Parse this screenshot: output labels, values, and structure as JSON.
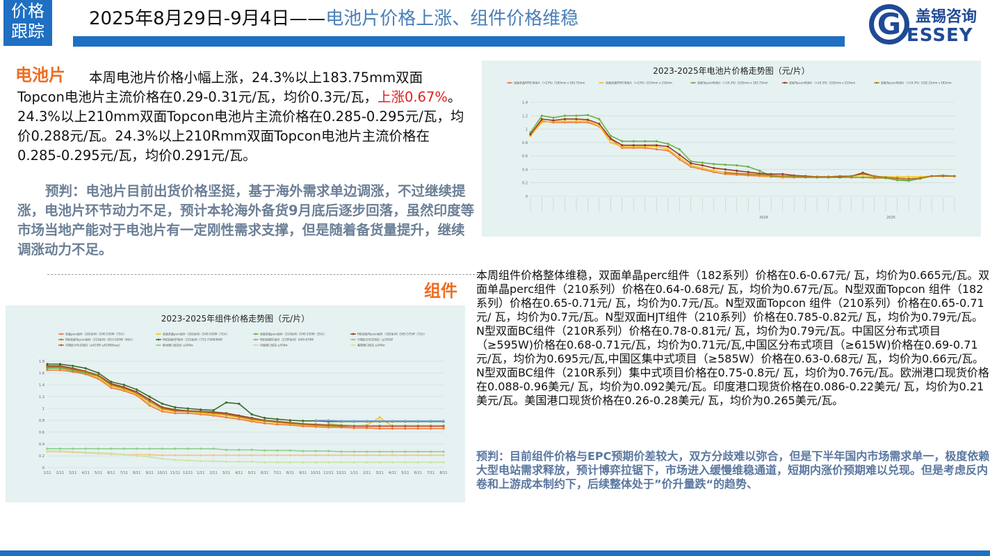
{
  "header": {
    "tag_line1": "价格",
    "tag_line2": "跟踪",
    "date_range": "2025年8月29日-9月4日——",
    "headline": "电池片价格上涨、组件价格维稳",
    "logo_cn": "盖锡咨询",
    "logo_g": "G",
    "logo_en": "ESSEY"
  },
  "cells": {
    "title": "电池片",
    "para_a": "本周电池片价格小幅上涨，24.3%以上183.75mm双面Topcon电池片主流价格在0.29-0.31元/瓦，均价0.3元/瓦，",
    "para_red": "上涨0.67%",
    "para_b": "。24.3%以上210mm双面Topcon电池片主流价格在0.285-0.295元/瓦，均价0.288元/瓦。24.3%以上210Rmm双面Topcon电池片主流价格在0.285-0.295元/瓦，均价0.291元/瓦。",
    "prediction": "预判：电池片目前出货价格坚挺，基于海外需求单边调涨，不过继续提涨，电池片环节动力不足，预计本轮海外备货9月底后逐步回落，虽然印度等市场当地产能对于电池片有一定刚性需求支撑，但是随着备货量提升，继续调涨动力不足。"
  },
  "modules": {
    "title": "组件",
    "paragraph": "本周组件价格整体维稳，双面单晶perc组件（182系列）价格在0.6-0.67元/ 瓦，均价为0.665元/瓦。双面单晶perc组件（210系列）价格在0.64-0.68元/ 瓦，均价为0.67元/瓦。N型双面Topcon 组件（182系列）价格在0.65-0.71元/ 瓦，均价为0.7元/瓦。N型双面Topcon 组件（210系列）价格在0.65-0.71元/ 瓦，均价为0.7元/瓦。N型双面HJT组件（210系列）价格在0.785-0.82元/ 瓦，均价为0.79元/瓦。N型双面BC组件（210R系列）价格在0.78-0.81元/ 瓦，均价为0.79元/瓦。中国区分布式项目（≥595W)价格在0.68-0.71元/瓦，均价为0.71元/瓦,中国区分布式项目（≥615W)价格在0.69-0.71元/瓦，均价为0.695元/瓦,中国区集中式项目（≥585W）价格在0.63-0.68元/ 瓦，均价为0.66元/瓦。N型双面BC组件（210R系列）集中式项目价格在0.75-0.8元/ 瓦，均价为0.76元/瓦。欧洲港口现货价格在0.088-0.96美元/ 瓦，均价为0.092美元/瓦。印度港口现货价格在0.086-0.22美元/ 瓦，均价为0.21美元/瓦。美国港口现货价格在0.26-0.28美元/ 瓦，均价为0.265美元/瓦。",
    "prediction": "预判：目前组件价格与EPC预期价差较大，双方分歧难以弥合，但是下半年国内市场需求单一，极度依赖大型电站需求释放，预计博弈拉锯下，市场进入缓慢维稳通道，短期内涨价预期难以兑现。但是考虑反内卷和上游成本制约下，后续整体处于”价升量跌“的趋势、"
  },
  "colors": {
    "accent_blue": "#1f6fc2",
    "orange_title": "#ef6d20",
    "highlight_red": "#e02020",
    "prediction_text": "#6b7f96"
  },
  "chart_data": [
    {
      "type": "line",
      "title": "2023-2025年电池片价格走势图（元/片）",
      "ylim": [
        0,
        1.4
      ],
      "yticks": [
        "0",
        "0.2",
        "0.4",
        "0.6",
        "0.8",
        "1",
        "1.2",
        "1.4"
      ],
      "xgroups": [
        "2024",
        "2025"
      ],
      "series": [
        {
          "name": "双面单晶PERC电池片（>23%）[182mm x 183.75mm",
          "color": "#f0793a",
          "values": [
            0.93,
            1.12,
            1.1,
            1.1,
            1.1,
            1.1,
            1.04,
            0.85,
            0.72,
            0.72,
            0.72,
            0.7,
            0.68,
            0.55,
            0.44,
            0.4,
            0.36,
            0.33,
            0.32,
            0.31,
            0.3,
            0.29,
            0.28,
            0.28,
            0.28,
            0.28,
            0.28,
            0.29,
            0.28,
            0.28,
            0.27,
            0.27,
            0.25,
            0.24,
            0.27,
            0.3,
            0.3,
            0.3
          ]
        },
        {
          "name": "双面单晶PERC电池片（>23%）[210mm x 210mm",
          "color": "#f7c325",
          "values": [
            0.9,
            1.1,
            1.12,
            1.12,
            1.12,
            1.12,
            1.05,
            0.8,
            0.74,
            0.74,
            0.74,
            0.74,
            0.7,
            0.58,
            0.46,
            0.42,
            0.38,
            0.36,
            0.34,
            0.33,
            0.31,
            0.3,
            0.29,
            0.29,
            0.29,
            0.29,
            0.29,
            0.3,
            0.29,
            0.29,
            0.29,
            0.29,
            0.29,
            0.29,
            0.29,
            0.3,
            0.3,
            0.3
          ]
        },
        {
          "name": "双面Topcon电池片（>24.3%）[182mm x 183.75mm",
          "color": "#6ab24a",
          "values": [
            0.95,
            1.2,
            1.17,
            1.2,
            1.2,
            1.21,
            1.15,
            0.9,
            0.82,
            0.82,
            0.82,
            0.82,
            0.78,
            0.7,
            0.52,
            0.5,
            0.48,
            0.47,
            0.46,
            0.44,
            0.38,
            0.3,
            0.3,
            0.29,
            0.28,
            0.28,
            0.28,
            0.28,
            0.28,
            0.28,
            0.28,
            0.27,
            0.24,
            0.23,
            0.26,
            0.3,
            0.31,
            0.3
          ]
        },
        {
          "name": "双面Topcon电池片（>24.3%）[182mm x 210mm",
          "color": "#9b3a24",
          "values": [
            0.92,
            1.15,
            1.13,
            1.15,
            1.15,
            1.14,
            1.08,
            0.86,
            0.76,
            0.76,
            0.76,
            0.76,
            0.74,
            0.62,
            0.49,
            0.46,
            0.42,
            0.4,
            0.38,
            0.36,
            0.34,
            0.33,
            0.33,
            0.31,
            0.3,
            0.29,
            0.29,
            0.29,
            0.3,
            0.35,
            0.3,
            0.28,
            0.27,
            0.26,
            0.27,
            0.3,
            0.3,
            0.3
          ]
        },
        {
          "name": "双面Topcon电池片（>24.3%）[182.22mm x 182mm",
          "color": "#b07a1e",
          "values": [
            null,
            null,
            null,
            null,
            null,
            null,
            null,
            null,
            null,
            null,
            null,
            null,
            null,
            null,
            null,
            null,
            null,
            0.35,
            0.34,
            0.33,
            0.32,
            0.31,
            0.3,
            0.3,
            0.29,
            0.29,
            0.29,
            0.3,
            0.3,
            0.33,
            0.3,
            0.28,
            0.27,
            0.26,
            0.27,
            0.3,
            0.3,
            0.3
          ]
        }
      ]
    },
    {
      "type": "line",
      "title": "2023-2025年组件价格走势图（元/片）",
      "ylim": [
        0,
        1.8
      ],
      "yticks": [
        "0",
        "0.2",
        "0.4",
        "0.6",
        "0.8",
        "1",
        "1.2",
        "1.4",
        "1.6",
        "1.8"
      ],
      "xticks": [
        "1/11",
        "2/11",
        "3/11",
        "4/11",
        "5/11",
        "6/11",
        "7/11",
        "8/11",
        "9/11",
        "10/11",
        "11/11",
        "12/11",
        "1/11",
        "2/11",
        "3/11",
        "4/11",
        "5/11",
        "6/11",
        "7/11",
        "8/11",
        "9/11",
        "10/11",
        "11/11",
        "12/11",
        "1/11",
        "2/11",
        "3/11",
        "4/11",
        "5/11",
        "6/11",
        "7/11",
        "8/11"
      ],
      "series": [
        {
          "name": "单晶perc组件（182系列）[540-550W（72片）",
          "color": "#f0793a",
          "values": [
            1.65,
            1.65,
            1.62,
            1.58,
            1.5,
            1.35,
            1.3,
            1.22,
            1.05,
            0.95,
            0.92,
            0.92,
            0.9,
            0.88,
            0.85,
            0.82,
            0.78,
            0.75,
            0.73,
            0.72,
            0.7,
            0.69,
            0.68,
            0.68,
            0.67,
            0.67,
            0.66,
            0.66,
            0.66,
            0.66,
            0.66,
            0.66
          ]
        },
        {
          "name": "双面单晶perc组件（182系列）[540-550W（72片）",
          "color": "#f7c325",
          "values": [
            1.7,
            1.7,
            1.66,
            1.6,
            1.52,
            1.38,
            1.32,
            1.24,
            1.08,
            0.98,
            0.95,
            0.95,
            0.92,
            0.9,
            0.88,
            0.85,
            0.8,
            0.78,
            0.76,
            0.74,
            0.72,
            0.71,
            0.7,
            0.7,
            0.7,
            0.72,
            0.85,
            0.7,
            0.7,
            0.7,
            0.7,
            0.7
          ]
        },
        {
          "name": "双面单晶perc组件（210系列）[540-550W（55片）",
          "color": "#6ab24a",
          "values": [
            1.68,
            1.68,
            1.64,
            1.6,
            1.55,
            1.4,
            1.35,
            1.26,
            1.12,
            1.0,
            0.97,
            0.96,
            0.95,
            0.93,
            0.9,
            0.86,
            0.82,
            0.8,
            0.78,
            0.76,
            0.74,
            0.72,
            0.71,
            0.7,
            0.7,
            0.7,
            0.7,
            0.7,
            0.7,
            0.7,
            0.7,
            0.7
          ]
        },
        {
          "name": "N型双面Topcon组件（182系列）[565-575W（72片）",
          "color": "#9b3a24",
          "values": [
            1.72,
            1.72,
            1.68,
            1.63,
            1.56,
            1.42,
            1.36,
            1.28,
            1.15,
            1.02,
            0.98,
            0.96,
            0.95,
            0.94,
            0.92,
            0.88,
            0.84,
            0.8,
            0.78,
            0.76,
            0.74,
            0.73,
            0.72,
            0.71,
            0.7,
            0.7,
            0.7,
            0.7,
            0.7,
            0.7,
            0.7,
            0.7
          ]
        },
        {
          "name": "N型双面Topcon组件（210系列）[615-630W（66片）",
          "color": "#b07a1e",
          "values": [
            1.7,
            1.7,
            1.66,
            1.62,
            1.55,
            1.4,
            1.34,
            1.26,
            1.12,
            1.0,
            0.96,
            0.95,
            0.94,
            0.92,
            0.9,
            0.86,
            0.82,
            0.79,
            0.77,
            0.75,
            0.73,
            0.72,
            0.71,
            0.7,
            0.7,
            0.7,
            0.7,
            0.7,
            0.7,
            0.7,
            0.7,
            0.7
          ]
        },
        {
          "name": "N型双面HJT组件（210系列）[715-730W/66W",
          "color": "#3a6a2a",
          "values": [
            1.75,
            1.75,
            1.72,
            1.68,
            1.6,
            1.45,
            1.4,
            1.32,
            1.2,
            1.08,
            1.02,
            1.0,
            0.98,
            0.97,
            1.1,
            1.08,
            0.9,
            0.84,
            0.82,
            0.8,
            0.79,
            0.79,
            0.78,
            0.78,
            0.78,
            0.78,
            0.78,
            0.78,
            0.78,
            0.78,
            0.78,
            0.78
          ]
        },
        {
          "name": "N型双面BC组件（210R系列）[640-670W",
          "color": "#7fa8d8",
          "values": [
            null,
            null,
            null,
            null,
            null,
            null,
            null,
            null,
            null,
            null,
            null,
            null,
            null,
            null,
            null,
            null,
            null,
            null,
            null,
            null,
            null,
            0.8,
            0.8,
            0.79,
            0.79,
            0.79,
            0.79,
            0.79,
            0.79,
            0.79,
            0.79,
            0.79
          ]
        },
        {
          "name": "中国区分布式项目（≥595W",
          "color": "#a7c64a",
          "values": [
            null,
            null,
            null,
            null,
            null,
            null,
            null,
            null,
            null,
            null,
            null,
            null,
            null,
            null,
            null,
            null,
            null,
            null,
            null,
            null,
            null,
            null,
            0.74,
            0.72,
            0.71,
            0.71,
            0.71,
            0.71,
            0.71,
            0.71,
            0.71,
            0.71
          ]
        },
        {
          "name": "中国区分布式项目（≥615W ≥6198/6eay/",
          "color": "#c9553a",
          "values": [
            null,
            null,
            null,
            null,
            null,
            null,
            null,
            null,
            null,
            null,
            null,
            null,
            null,
            null,
            null,
            null,
            null,
            null,
            null,
            null,
            null,
            null,
            0.72,
            0.71,
            0.7,
            0.7,
            0.7,
            0.7,
            0.7,
            0.7,
            0.7,
            0.7
          ]
        },
        {
          "name": "欧洲港口现货价 ≥540w",
          "color": "#8fcf8f",
          "values": [
            0.32,
            0.32,
            0.32,
            0.32,
            0.32,
            0.32,
            0.32,
            0.32,
            0.32,
            0.32,
            0.32,
            0.32,
            0.32,
            0.32,
            0.3,
            0.3,
            0.3,
            0.29,
            0.29,
            0.29,
            0.28,
            0.28,
            0.28,
            0.27,
            0.27,
            0.27,
            0.27,
            0.27,
            0.27,
            0.27,
            0.27,
            0.27
          ]
        },
        {
          "name": "印度港口现货 ≥430w",
          "color": "#f5c78a",
          "values": [
            0.27,
            0.27,
            0.26,
            0.25,
            0.24,
            0.23,
            0.22,
            0.22,
            0.22,
            0.21,
            0.21,
            0.21,
            0.21,
            0.21,
            0.21,
            0.21,
            0.21,
            0.21,
            0.21,
            0.21,
            0.21,
            0.21,
            0.21,
            0.21,
            0.21,
            0.21,
            0.21,
            0.21,
            0.21,
            0.21,
            0.21,
            0.21
          ]
        },
        {
          "name": "美国港口现货 ≥540w",
          "color": "#c8e6a0",
          "values": [
            0.28,
            0.28,
            0.27,
            0.26,
            0.25,
            0.24,
            0.22,
            0.2,
            0.18,
            0.15,
            0.13,
            0.12,
            0.11,
            0.11,
            0.1,
            0.1,
            0.1,
            0.09,
            0.09,
            0.09,
            0.09,
            0.09,
            0.09,
            0.09,
            0.09,
            0.09,
            0.09,
            0.09,
            0.09,
            0.09,
            0.09,
            0.09
          ]
        }
      ]
    }
  ]
}
